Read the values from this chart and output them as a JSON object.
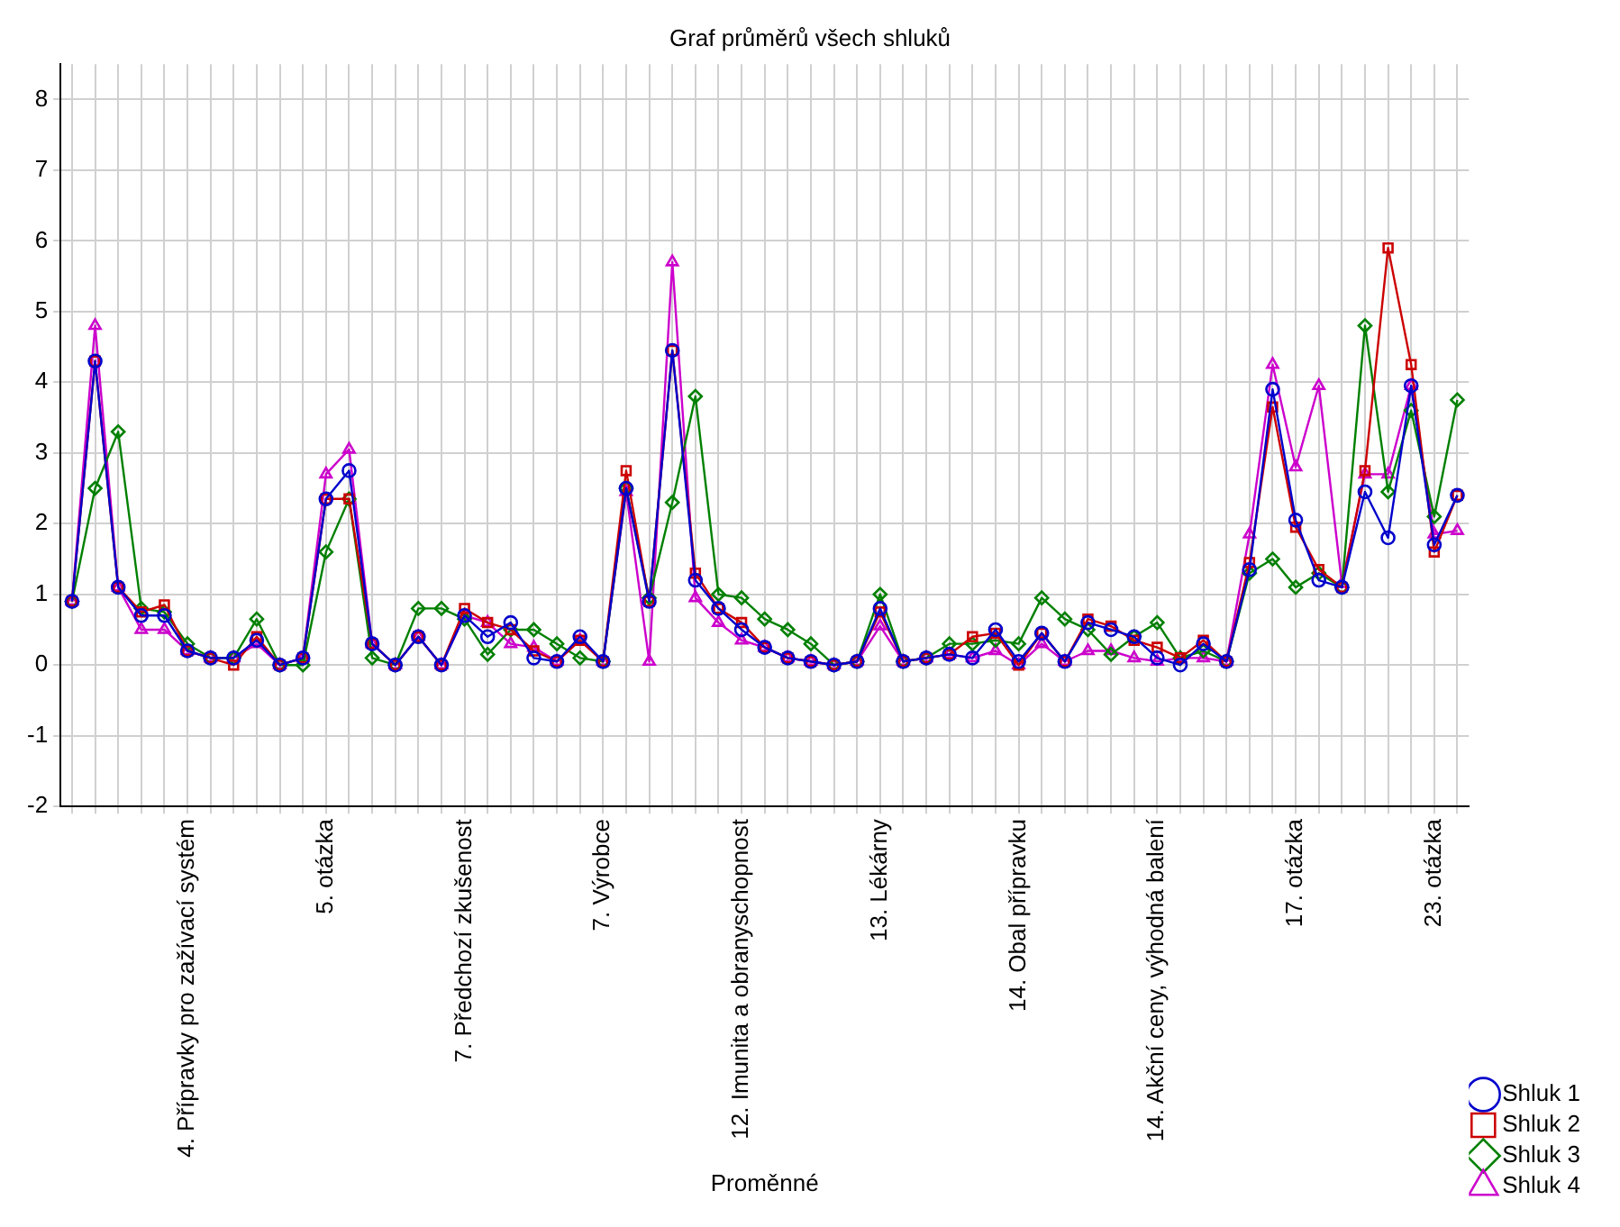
{
  "chart_data": {
    "type": "line",
    "title": "Graf průměrů všech shluků",
    "xlabel": "Proměnné",
    "categories": [
      null,
      null,
      null,
      null,
      null,
      "4. Přípravky pro zažívací systém",
      null,
      null,
      null,
      null,
      null,
      "5. otázka",
      null,
      null,
      null,
      null,
      null,
      "7. Předchozí zkušenost",
      null,
      null,
      null,
      null,
      null,
      "7. Výrobce",
      null,
      null,
      null,
      null,
      null,
      "12. Imunita a obranyschopnost",
      null,
      null,
      null,
      null,
      null,
      "13. Lékárny",
      null,
      null,
      null,
      null,
      null,
      "14. Obal přípravku",
      null,
      null,
      null,
      null,
      null,
      "14. Akční ceny, výhodná balení",
      null,
      null,
      null,
      null,
      null,
      "17. otázka",
      null,
      null,
      null,
      null,
      null,
      "23. otázka",
      null
    ],
    "ylim": [
      -2,
      8.5
    ],
    "yticks": [
      -2,
      -1,
      0,
      1,
      2,
      3,
      4,
      5,
      6,
      7,
      8
    ],
    "grid": true,
    "legend": "bottom right",
    "line_style": "solid",
    "series": [
      {
        "name": "Shluk 1",
        "color": "#0000cc",
        "marker": "circle",
        "values": [
          0.9,
          4.3,
          1.1,
          0.7,
          0.7,
          0.2,
          0.1,
          0.1,
          0.35,
          0.0,
          0.1,
          2.35,
          2.75,
          0.3,
          0.0,
          0.4,
          0.0,
          0.7,
          0.4,
          0.6,
          0.1,
          0.05,
          0.4,
          0.05,
          2.5,
          0.9,
          4.45,
          1.2,
          0.8,
          0.5,
          0.25,
          0.1,
          0.05,
          0.0,
          0.05,
          0.8,
          0.05,
          0.1,
          0.15,
          0.1,
          0.5,
          0.05,
          0.45,
          0.05,
          0.6,
          0.5,
          0.4,
          0.1,
          0.0,
          0.3,
          0.05,
          1.35,
          3.9,
          2.05,
          1.2,
          1.1,
          2.45,
          1.8,
          3.95,
          1.7,
          2.4
        ]
      },
      {
        "name": "Shluk 2",
        "color": "#cc0000",
        "marker": "square",
        "values": [
          0.9,
          4.3,
          1.1,
          0.75,
          0.85,
          0.2,
          0.1,
          0.0,
          0.4,
          0.0,
          0.1,
          2.35,
          2.35,
          0.3,
          0.0,
          0.4,
          0.0,
          0.8,
          0.6,
          0.5,
          0.2,
          0.05,
          0.35,
          0.05,
          2.75,
          0.9,
          4.45,
          1.3,
          0.8,
          0.6,
          0.25,
          0.1,
          0.05,
          0.0,
          0.05,
          0.75,
          0.05,
          0.1,
          0.15,
          0.4,
          0.45,
          0.0,
          0.45,
          0.05,
          0.65,
          0.55,
          0.35,
          0.25,
          0.1,
          0.35,
          0.05,
          1.45,
          3.65,
          1.95,
          1.35,
          1.1,
          2.75,
          5.9,
          4.25,
          1.6,
          2.4
        ]
      },
      {
        "name": "Shluk 3",
        "color": "#008000",
        "marker": "diamond",
        "values": [
          0.9,
          2.5,
          3.3,
          0.8,
          0.75,
          0.3,
          0.1,
          0.1,
          0.65,
          0.0,
          0.0,
          1.6,
          2.35,
          0.1,
          0.0,
          0.8,
          0.8,
          0.65,
          0.15,
          0.5,
          0.5,
          0.3,
          0.1,
          0.05,
          2.5,
          0.95,
          2.3,
          3.8,
          1.0,
          0.95,
          0.65,
          0.5,
          0.3,
          0.0,
          0.05,
          1.0,
          0.05,
          0.1,
          0.3,
          0.3,
          0.35,
          0.3,
          0.95,
          0.65,
          0.5,
          0.15,
          0.4,
          0.6,
          0.1,
          0.2,
          0.05,
          1.3,
          1.5,
          1.1,
          1.3,
          1.1,
          4.8,
          2.45,
          3.6,
          2.1,
          3.75
        ]
      },
      {
        "name": "Shluk 4",
        "color": "#cc00cc",
        "marker": "triangle",
        "values": [
          0.9,
          4.8,
          1.1,
          0.5,
          0.5,
          0.2,
          0.1,
          0.1,
          0.3,
          0.0,
          0.1,
          2.7,
          3.05,
          0.3,
          0.0,
          0.4,
          0.0,
          0.7,
          0.6,
          0.3,
          0.25,
          0.05,
          0.35,
          0.05,
          2.45,
          0.05,
          5.7,
          0.95,
          0.6,
          0.35,
          0.25,
          0.1,
          0.05,
          0.0,
          0.05,
          0.55,
          0.05,
          0.1,
          0.15,
          0.1,
          0.2,
          0.0,
          0.3,
          0.05,
          0.2,
          0.2,
          0.1,
          0.05,
          0.1,
          0.1,
          0.05,
          1.85,
          4.25,
          2.8,
          3.95,
          1.15,
          2.7,
          2.7,
          3.95,
          1.85,
          1.9
        ]
      }
    ]
  }
}
